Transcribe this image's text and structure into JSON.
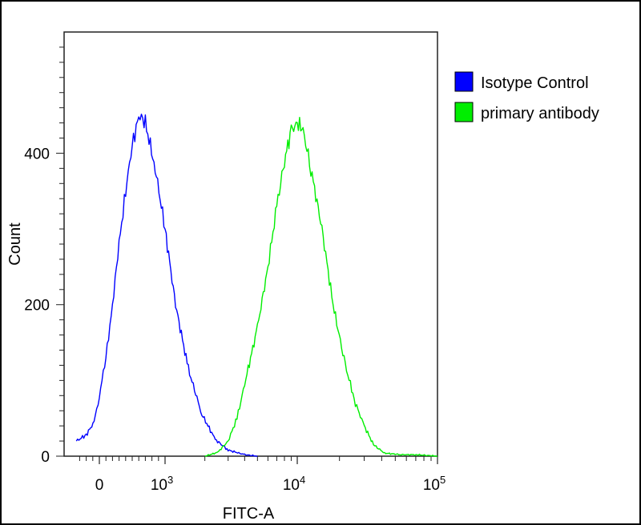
{
  "chart_data": {
    "type": "line",
    "xlabel": "FITC-A",
    "ylabel": "Count",
    "x_scale": "biexponential",
    "x_ticks": [
      {
        "value": 0,
        "base": "0",
        "exp": ""
      },
      {
        "value": 1000,
        "base": "10",
        "exp": "3"
      },
      {
        "value": 10000,
        "base": "10",
        "exp": "4"
      },
      {
        "value": 100000,
        "base": "10",
        "exp": "5"
      }
    ],
    "y_ticks": [
      "0",
      "200",
      "400"
    ],
    "ylim": [
      0,
      560
    ],
    "legend_position": "top-right",
    "series": [
      {
        "name": "Isotype Control",
        "color": "#0000ff",
        "x": [
          -350,
          -200,
          -80,
          0,
          100,
          200,
          300,
          400,
          500,
          600,
          700,
          850,
          1000,
          1200,
          1500,
          1900,
          2400,
          3000,
          4000,
          5000
        ],
        "y": [
          20,
          28,
          45,
          80,
          130,
          200,
          280,
          350,
          410,
          450,
          440,
          380,
          300,
          200,
          115,
          55,
          22,
          8,
          2,
          0
        ]
      },
      {
        "name": "primary antibody",
        "color": "#00ee00",
        "x": [
          2000,
          2500,
          3000,
          3500,
          4000,
          5000,
          6000,
          7000,
          8000,
          9000,
          10000,
          11000,
          12500,
          15000,
          18000,
          22000,
          26000,
          30000,
          35000,
          42000,
          55000,
          70000,
          100000
        ],
        "y": [
          0,
          5,
          20,
          50,
          95,
          170,
          250,
          330,
          390,
          430,
          440,
          430,
          380,
          300,
          200,
          120,
          70,
          40,
          15,
          4,
          2,
          2,
          0
        ]
      }
    ]
  }
}
